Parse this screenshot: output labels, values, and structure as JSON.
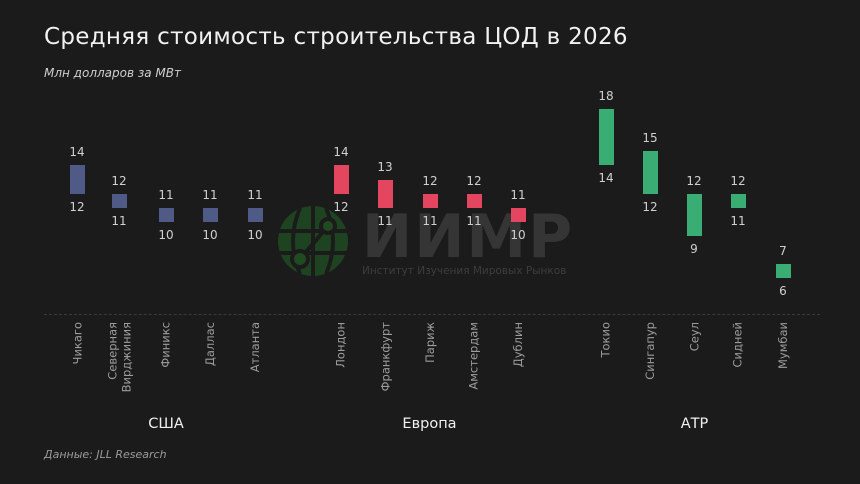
{
  "header": {
    "title": "Средняя стоимость строительства ЦОД в 2026",
    "subtitle": "Млн долларов за МВт"
  },
  "footer": {
    "source": "Данные: JLL Research"
  },
  "watermark": {
    "logo_icon": "globe-icon",
    "text": "ИИМР",
    "subtext": "Институт Изучения Мировых Рынков"
  },
  "colors": {
    "background": "#1b1b1b",
    "usa": "#4f5a86",
    "europe": "#e3465e",
    "apac": "#3aad74"
  },
  "chart_data": {
    "type": "floating-bar",
    "title": "Средняя стоимость строительства ЦОД в 2026",
    "subtitle": "Млн долларов за МВт",
    "xlabel": "",
    "ylabel": "Млн долларов за МВт",
    "grid": false,
    "legend": "none",
    "groups": [
      {
        "name": "США",
        "color": "#4f5a86",
        "categories": [
          "Чикаго",
          "Северная\nВирджиния",
          "Финикс",
          "Даллас",
          "Атланта"
        ],
        "low": [
          12,
          11,
          10,
          10,
          10
        ],
        "high": [
          14,
          12,
          11,
          11,
          11
        ]
      },
      {
        "name": "Европа",
        "color": "#e3465e",
        "categories": [
          "Лондон",
          "Франкфурт",
          "Париж",
          "Амстердам",
          "Дублин"
        ],
        "low": [
          12,
          11,
          11,
          11,
          10
        ],
        "high": [
          14,
          13,
          12,
          12,
          11
        ]
      },
      {
        "name": "АТР",
        "color": "#3aad74",
        "categories": [
          "Токио",
          "Сингапур",
          "Сеул",
          "Сидней",
          "Мумбаи"
        ],
        "low": [
          14,
          12,
          9,
          11,
          6
        ],
        "high": [
          18,
          15,
          12,
          12,
          7
        ]
      }
    ],
    "x_positions": [
      77,
      119,
      166,
      210,
      255,
      341,
      385,
      430,
      474,
      518,
      606,
      650,
      694,
      738,
      783
    ],
    "ylim": [
      6,
      18
    ],
    "notes": "Each bar spans min–max cost; labels above show max, labels below show min."
  }
}
